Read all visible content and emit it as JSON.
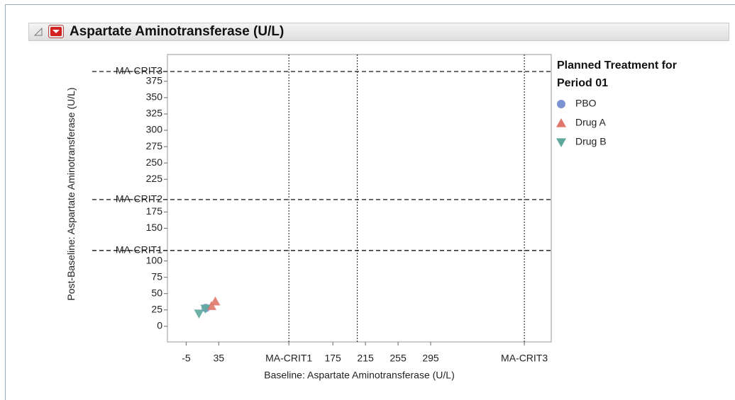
{
  "chart_data": {
    "type": "scatter",
    "title": "Aspartate Aminotransferase (U/L)",
    "x_label": "Baseline: Aspartate Aminotransferase (U/L)",
    "y_label": "Post-Baseline: Aspartate Aminotransferase (U/L)",
    "legend_title": "Planned Treatment for Period 01",
    "legend": "right",
    "xlim": [
      -28,
      443
    ],
    "ylim": [
      -24,
      416
    ],
    "xticks": [
      -5,
      35,
      {
        "value": 121,
        "label": "MA-CRIT1"
      },
      175,
      215,
      255,
      295,
      {
        "value": 410,
        "label": "MA-CRIT3"
      }
    ],
    "yticks": [
      0,
      25,
      50,
      75,
      100,
      {
        "value": 116,
        "label": "MA-CRIT1"
      },
      150,
      175,
      {
        "value": 194,
        "label": "MA-CRIT2"
      },
      225,
      250,
      275,
      300,
      325,
      350,
      375,
      {
        "value": 390,
        "label": "MA-CRIT3"
      }
    ],
    "x_reference_lines": [
      121,
      205,
      410
    ],
    "y_reference_lines": [
      116,
      194,
      390
    ],
    "series": [
      {
        "name": "PBO",
        "color": "#7b93d3",
        "marker": "circle",
        "x": [
          19
        ],
        "y": [
          28
        ]
      },
      {
        "name": "Drug A",
        "color": "#e0776a",
        "marker": "triangle-up",
        "x": [
          30.7,
          26
        ],
        "y": [
          38,
          31
        ]
      },
      {
        "name": "Drug B",
        "color": "#5fa89c",
        "marker": "triangle-down",
        "x": [
          10.7,
          18.5
        ],
        "y": [
          19.5,
          27
        ]
      }
    ]
  }
}
